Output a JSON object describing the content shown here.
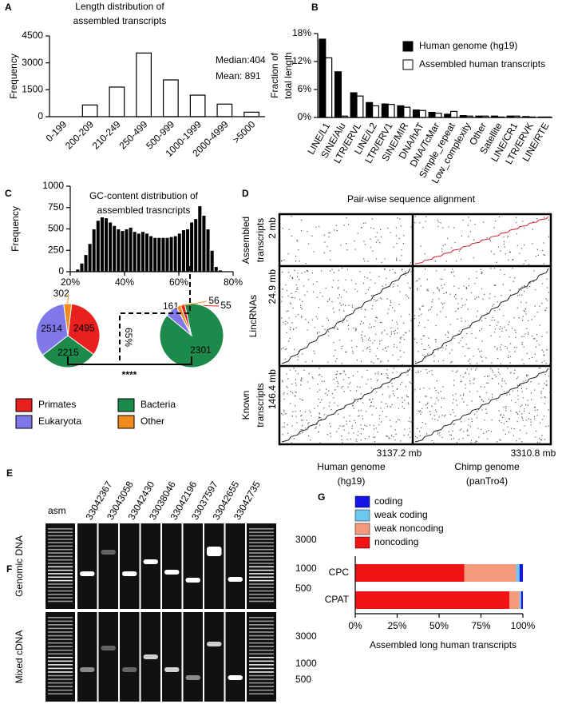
{
  "chart_data": [
    {
      "type": "bar",
      "panel": "A",
      "title": [
        "Length distribution of",
        "assembled transcripts"
      ],
      "y_label": [
        "Frequency"
      ],
      "annotations": [
        "Median:404",
        "Mean: 891"
      ],
      "categories": [
        "0-199",
        "200-209",
        "210-249",
        "250-499",
        "500-999",
        "1000-1999",
        "2000-4999",
        ">5000"
      ],
      "values": [
        0,
        650,
        1650,
        3550,
        2050,
        1200,
        700,
        250
      ],
      "color": "#ffffff",
      "edgecolor": "#000000",
      "ylim": [
        0,
        4500
      ],
      "yticks": [
        0,
        1500,
        3000,
        4500
      ]
    },
    {
      "type": "bar",
      "panel": "B",
      "y_label": [
        "Fraction of",
        "total length"
      ],
      "categories": [
        "LINE/L1",
        "SINE/Alu",
        "LTR/ERVL",
        "LINE/L2",
        "LTR/ERV1",
        "SINE/MIR",
        "DNA/hAT",
        "DNA/TcMar",
        "Simple_repeat",
        "Low_complexity",
        "Other",
        "Satellite",
        "LINE/CR1",
        "LTR/ERVK",
        "LINE/RTE"
      ],
      "series": [
        {
          "name": "Human genome (hg19)",
          "color": "#000000",
          "values": [
            16.8,
            9.8,
            5.3,
            3.2,
            2.9,
            2.5,
            1.6,
            1.1,
            0.7,
            0.4,
            0.3,
            0.3,
            0.3,
            0.2,
            0.1
          ]
        },
        {
          "name": "Assembled human transcripts",
          "color": "#ffffff",
          "values": [
            12.8,
            0.3,
            4.6,
            2.5,
            2.8,
            2.2,
            1.5,
            0.9,
            1.3,
            0.3,
            0.3,
            0.1,
            0.3,
            0.1,
            0.1
          ]
        }
      ],
      "edgecolor": "#000000",
      "ylim": [
        0,
        18
      ],
      "yticks": [
        {
          "value": 0,
          "label": "0%"
        },
        {
          "value": 6,
          "label": "6%"
        },
        {
          "value": 12,
          "label": "12%"
        },
        {
          "value": 18,
          "label": "18%"
        }
      ]
    },
    {
      "type": "histogram",
      "panel": "C",
      "title": [
        "GC-content distribution of",
        "assembled trasncripts"
      ],
      "y_label": [
        "Frequency"
      ],
      "bins": [
        22,
        23.5,
        25,
        26.5,
        28,
        29.5,
        31,
        32.5,
        34,
        35.5,
        37,
        38.5,
        40,
        41.5,
        43,
        44.5,
        46,
        47.5,
        49,
        50.5,
        52,
        53.5,
        55,
        56.5,
        58,
        59.5,
        61,
        62.5,
        64,
        65.5,
        67,
        68.5,
        70,
        71.5,
        73,
        74.5,
        76
      ],
      "values": [
        30,
        100,
        200,
        330,
        500,
        600,
        640,
        630,
        580,
        540,
        500,
        480,
        500,
        520,
        470,
        450,
        470,
        450,
        420,
        400,
        400,
        400,
        400,
        410,
        420,
        450,
        490,
        500,
        580,
        620,
        770,
        660,
        500,
        250,
        60,
        20
      ],
      "color": "#000000",
      "edgecolor": "#ffffff",
      "xlim": [
        20,
        80
      ],
      "xticks": [
        {
          "value": 20,
          "label": "20%"
        },
        {
          "value": 40,
          "label": "40%"
        },
        {
          "value": 60,
          "label": "60%"
        },
        {
          "value": 80,
          "label": "80%"
        }
      ],
      "ylim": [
        0,
        1000
      ],
      "yticks": [
        0,
        250,
        500,
        750,
        1000
      ]
    },
    {
      "type": "pie",
      "categories": [
        "Primates",
        "Eukaryota",
        "Bacteria",
        "Other"
      ],
      "colors": [
        "#e8201e",
        "#8078e8",
        "#1c8a4a",
        "#f08c1e"
      ],
      "series": [
        {
          "values": [
            2495,
            2514,
            2215,
            302
          ]
        },
        {
          "values": [
            55,
            161,
            2301,
            56
          ]
        }
      ],
      "annotations": [
        "65%",
        "****"
      ]
    },
    {
      "type": "bar",
      "orientation": "horizontal",
      "stacked": true,
      "panel": "G",
      "x_label": "Assembled long human transcripts",
      "categories": [
        "CPC",
        "CPAT"
      ],
      "series": [
        {
          "name": "coding",
          "color": "#1414e6",
          "values": [
            2,
            1
          ]
        },
        {
          "name": "weak coding",
          "color": "#6cc8f0",
          "values": [
            2,
            1
          ]
        },
        {
          "name": "weak noncoding",
          "color": "#f59a7c",
          "values": [
            31,
            6
          ]
        },
        {
          "name": "noncoding",
          "color": "#f01414",
          "values": [
            65,
            92
          ]
        }
      ],
      "xlim": [
        0,
        100
      ],
      "xticks": [
        {
          "value": 0,
          "label": "0%"
        },
        {
          "value": 25,
          "label": "25%"
        },
        {
          "value": 50,
          "label": "50%"
        },
        {
          "value": 75,
          "label": "75%"
        },
        {
          "value": 100,
          "label": "100%"
        }
      ]
    }
  ],
  "dotplot": {
    "panel": "D",
    "title": "Pair-wise sequence alignment",
    "rows": [
      {
        "label": [
          "Assembled",
          "transcripts"
        ],
        "size": "2 mb"
      },
      {
        "label": [
          "LincRNAs"
        ],
        "size": "24.9 mb"
      },
      {
        "label": [
          "Known",
          "transcripts"
        ],
        "size": "146.4 mb"
      }
    ],
    "columns": [
      {
        "label": [
          "Human genome",
          "(hg19)"
        ],
        "size": "3137.2 mb"
      },
      {
        "label": [
          "Chimp genome",
          "(panTro4)"
        ],
        "size": "3310.8 mb"
      }
    ]
  },
  "gel": {
    "panels": [
      "E",
      "F"
    ],
    "ladder_label": "asm",
    "lanes": [
      "33042367",
      "33043058",
      "33042430",
      "33038046",
      "33042196",
      "33037597",
      "33042655",
      "33042735"
    ],
    "rows": [
      "Genomic DNA",
      "Mixed cDNA"
    ],
    "sizes": [
      "3000",
      "1000",
      "500"
    ]
  }
}
